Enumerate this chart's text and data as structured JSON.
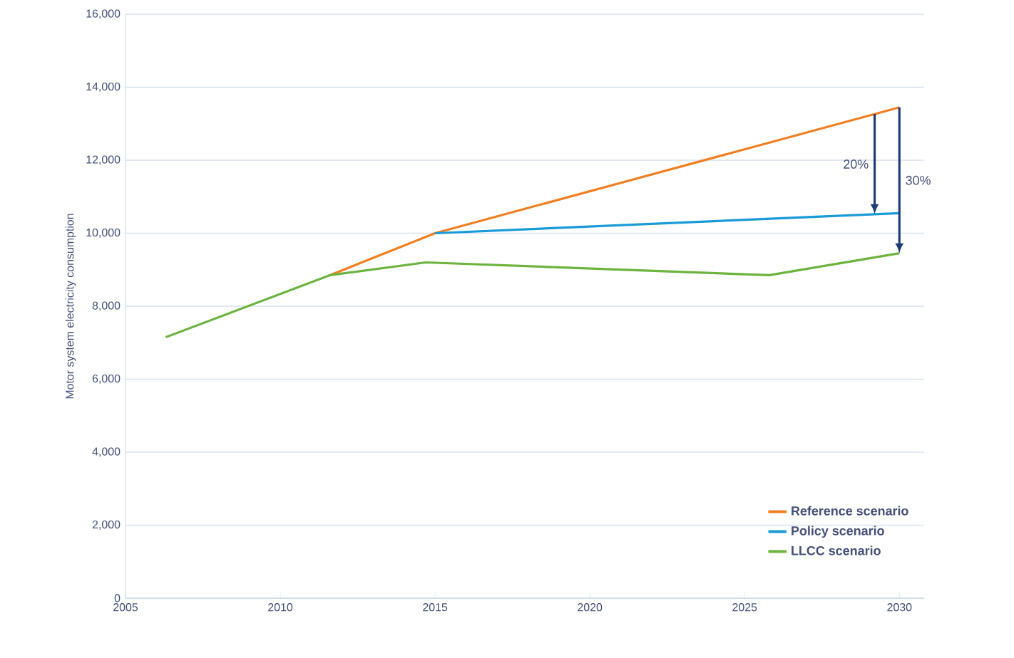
{
  "chart_data": {
    "type": "line",
    "ylabel": "Motor system electricity consumption",
    "xlim": [
      2005,
      2030.8
    ],
    "xticks": [
      2005,
      2010,
      2015,
      2020,
      2025,
      2030
    ],
    "ylim": [
      0,
      16000
    ],
    "yticks": [
      {
        "value": 0,
        "label": "0"
      },
      {
        "value": 2000,
        "label": "2,000"
      },
      {
        "value": 4000,
        "label": "4,000"
      },
      {
        "value": 6000,
        "label": "6,000"
      },
      {
        "value": 8000,
        "label": "8,000"
      },
      {
        "value": 10000,
        "label": "10,000"
      },
      {
        "value": 12000,
        "label": "12,000"
      },
      {
        "value": 14000,
        "label": "14,000"
      },
      {
        "value": 16000,
        "label": "16,000"
      }
    ],
    "grid": "y",
    "legend": "bottom right",
    "marker": "none",
    "line_style": "solid",
    "series": [
      {
        "name": "Reference scenario",
        "color": "#f07f22",
        "x": [
          2011.6,
          2015,
          2030
        ],
        "values": [
          8850,
          10000,
          13450
        ]
      },
      {
        "name": "Policy scenario",
        "color": "#1a9ad6",
        "x": [
          2015,
          2030
        ],
        "values": [
          10000,
          10550
        ]
      },
      {
        "name": "LLCC scenario",
        "color": "#6db33f",
        "x": [
          2006.3,
          2011.6,
          2014.7,
          2025.8,
          2030
        ],
        "values": [
          7150,
          8850,
          9200,
          8850,
          9450
        ]
      }
    ],
    "annotations": [
      "20%",
      "30%"
    ]
  }
}
